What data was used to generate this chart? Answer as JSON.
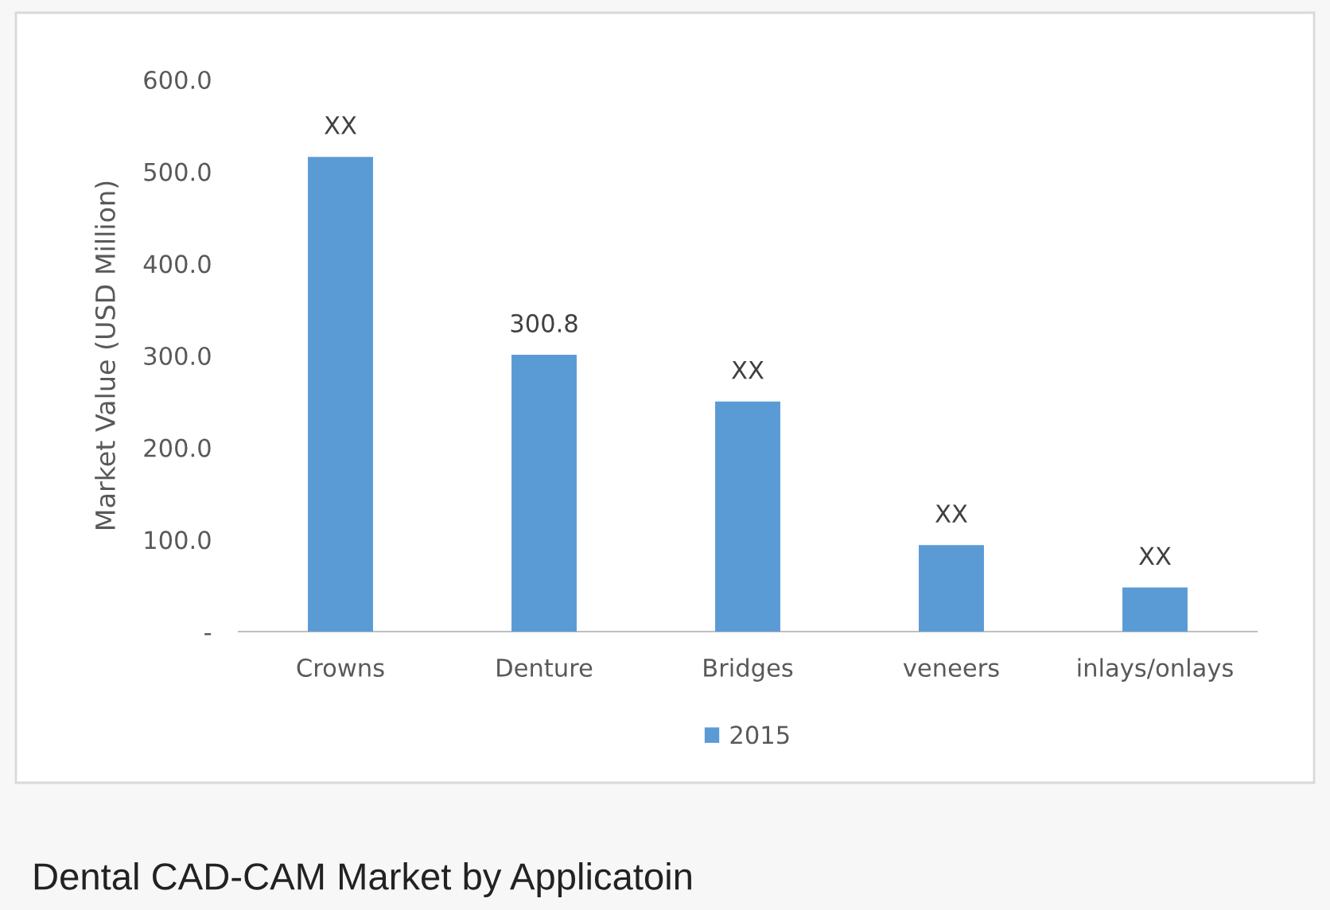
{
  "chart_data": {
    "type": "bar",
    "ylabel": "Market Value (USD Million)",
    "categories": [
      "Crowns",
      "Denture",
      "Bridges",
      "veneers",
      "inlays/onlays"
    ],
    "series": [
      {
        "name": "2015",
        "color": "#5b9bd5",
        "values": [
          516,
          300.8,
          250,
          94,
          48
        ],
        "value_labels": [
          "XX",
          "300.8",
          "XX",
          "XX",
          "XX"
        ]
      }
    ],
    "ylim": [
      0,
      600
    ],
    "yticks": [
      {
        "value": 0,
        "label": "-"
      },
      {
        "value": 100,
        "label": "100.0"
      },
      {
        "value": 200,
        "label": "200.0"
      },
      {
        "value": 300,
        "label": "300.0"
      },
      {
        "value": 400,
        "label": "400.0"
      },
      {
        "value": 500,
        "label": "500.0"
      },
      {
        "value": 600,
        "label": "600.0"
      }
    ],
    "grid": false,
    "legend": "bottom",
    "annotations": [
      "Dental CAD-CAM Market by Applicatoin"
    ]
  }
}
